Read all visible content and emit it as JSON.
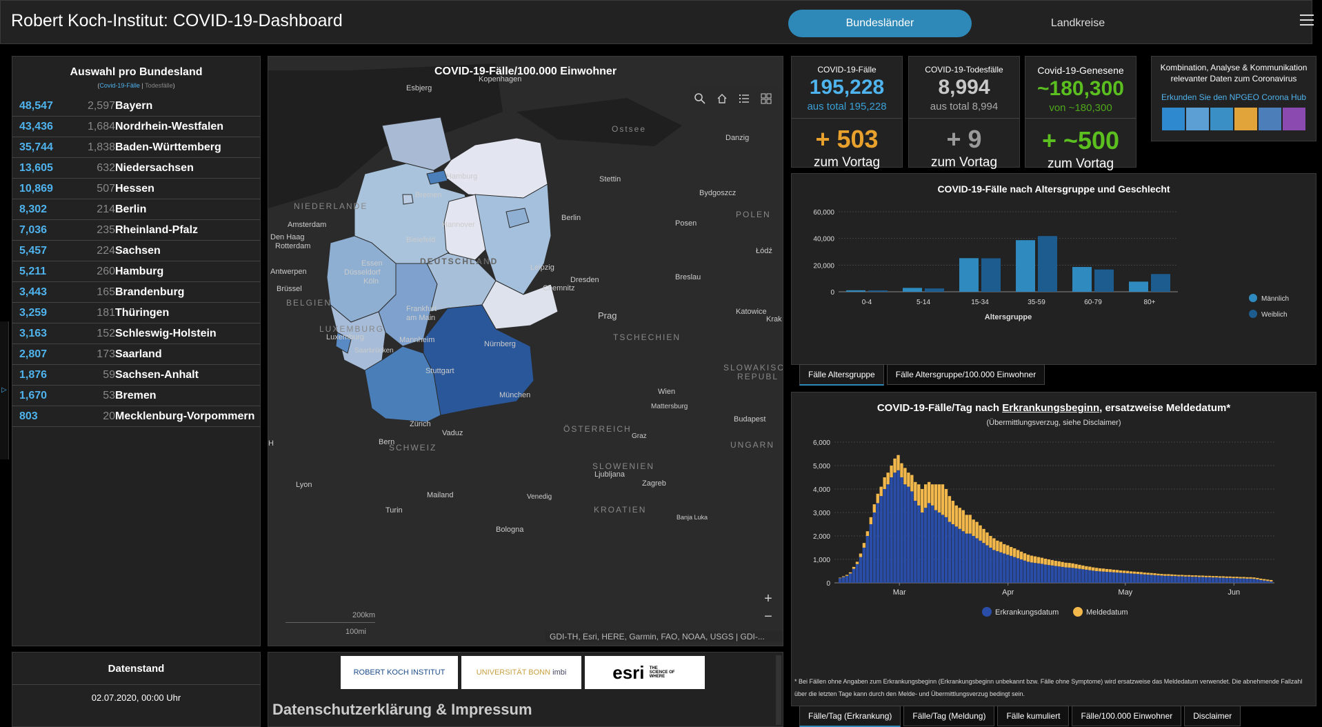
{
  "header": {
    "title": "Robert Koch-Institut: COVID-19-Dashboard",
    "tab_bundeslaender": "Bundesländer",
    "tab_landkreise": "Landkreise"
  },
  "left_panel": {
    "title": "Auswahl pro Bundesland",
    "toggle_cases": "Covid-19-Fälle",
    "toggle_sep": "|",
    "toggle_deaths": "Todesfälle",
    "states": [
      {
        "cases": "48,547",
        "deaths": "2,597",
        "name": "Bayern"
      },
      {
        "cases": "43,436",
        "deaths": "1,684",
        "name": "Nordrhein-Westfalen"
      },
      {
        "cases": "35,744",
        "deaths": "1,838",
        "name": "Baden-Württemberg"
      },
      {
        "cases": "13,605",
        "deaths": "632",
        "name": "Niedersachsen"
      },
      {
        "cases": "10,869",
        "deaths": "507",
        "name": "Hessen"
      },
      {
        "cases": "8,302",
        "deaths": "214",
        "name": "Berlin"
      },
      {
        "cases": "7,036",
        "deaths": "235",
        "name": "Rheinland-Pfalz"
      },
      {
        "cases": "5,457",
        "deaths": "224",
        "name": "Sachsen"
      },
      {
        "cases": "5,211",
        "deaths": "260",
        "name": "Hamburg"
      },
      {
        "cases": "3,443",
        "deaths": "165",
        "name": "Brandenburg"
      },
      {
        "cases": "3,259",
        "deaths": "181",
        "name": "Thüringen"
      },
      {
        "cases": "3,163",
        "deaths": "152",
        "name": "Schleswig-Holstein"
      },
      {
        "cases": "2,807",
        "deaths": "173",
        "name": "Saarland"
      },
      {
        "cases": "1,876",
        "deaths": "59",
        "name": "Sachsen-Anhalt"
      },
      {
        "cases": "1,670",
        "deaths": "53",
        "name": "Bremen"
      },
      {
        "cases": "803",
        "deaths": "20",
        "name": "Mecklenburg-Vorpommern"
      }
    ]
  },
  "map": {
    "title": "COVID-19-Fälle/100.000 Einwohner",
    "attribution": "GDI-TH, Esri, HERE, Garmin, FAO, NOAA, USGS | GDI-...",
    "scale_km": "200km",
    "scale_mi": "100mi",
    "zoom_in": "+",
    "zoom_out": "−",
    "country_label": "DEUTSCHLAND",
    "labels": {
      "kopenhagen": "Kopenhagen",
      "esbjerg": "Esbjerg",
      "ostsee": "Ostsee",
      "danzig": "Danzig",
      "hamburg": "Hamburg",
      "stettin": "Stettin",
      "bremen": "Bremen",
      "bydgoszcz": "Bydgoszcz",
      "niederlande": "NIEDERLANDE",
      "polen": "POLEN",
      "amsterdam": "Amsterdam",
      "hannover": "Hannover",
      "berlin": "Berlin",
      "posen": "Posen",
      "denhaag": "Den Haag",
      "rotterdam": "Rotterdam",
      "bielefeld": "Bielefeld",
      "lodz": "Łódź",
      "essen": "Essen",
      "duesseldorf": "Düsseldorf",
      "leipzig": "Leipzig",
      "antwerpen": "Antwerpen",
      "koeln": "Köln",
      "dresden": "Dresden",
      "bruessel": "Brüssel",
      "chemnitz": "Chemnitz",
      "breslau": "Breslau",
      "belgien": "BELGIEN",
      "katowice": "Katowice",
      "frankfurt": "Frankfurt am Main",
      "prag": "Prag",
      "krak": "Krak",
      "luxemburg_c": "LUXEMBURG",
      "luxemburg": "Luxemburg",
      "tschechien": "TSCHECHIEN",
      "nuernberg": "Nürnberg",
      "mannheim": "Mannheim",
      "saarbruecken": "Saarbrücken",
      "slowakische": "SLOWAKISCHE",
      "republ": "REPUBL",
      "stuttgart": "Stuttgart",
      "wien": "Wien",
      "muenchen": "München",
      "mattersburg": "Mattersburg",
      "zuerich": "Zürich",
      "oesterreich": "ÖSTERREICH",
      "budapest": "Budapest",
      "vaduz": "Vaduz",
      "bern": "Bern",
      "schweiz": "SCHWEIZ",
      "graz": "Graz",
      "ungarn": "UNGARN",
      "slowenien": "SLOWENIEN",
      "ljubljana": "Ljubljana",
      "lyon": "Lyon",
      "zagreb": "Zagreb",
      "mailand": "Mailand",
      "venedig": "Venedig",
      "turin": "Turin",
      "kroatien": "KROATIEN",
      "banjaluka": "Banja Luka",
      "bologna": "Bologna",
      "h": "H"
    }
  },
  "stats": {
    "cases": {
      "label": "COVID-19-Fälle",
      "value": "195,228",
      "total": "aus total 195,228",
      "delta": "+ 503",
      "delta_label": "zum Vortag"
    },
    "deaths": {
      "label": "COVID-19-Todesfälle",
      "value": "8,994",
      "total": "aus total 8,994",
      "delta": "+ 9",
      "delta_label": "zum Vortag"
    },
    "recovered": {
      "label": "Covid-19-Genesene",
      "value": "~180,300",
      "total": "von ~180,300",
      "delta": "+ ~500",
      "delta_label": "zum Vortag"
    },
    "hub": {
      "line1": "Kombination, Analyse & Kommunikation",
      "line2": "relevanter Daten zum Coronavirus",
      "link": "Erkunden Sie den NPGEO Corona Hub"
    }
  },
  "colors": {
    "accent": "#2f89b8",
    "cases_blue": "#4fb3ee",
    "deaths_gray": "#9a9a9a",
    "recovered_green": "#5bbf1f",
    "delta_orange": "#e8a12c",
    "male": "#2f8bbf",
    "female": "#1d5c8f",
    "erkrankung": "#2a4ea8",
    "melde": "#f2b84b"
  },
  "age_tabs": [
    "Fälle Altersgruppe",
    "Fälle Altersgruppe/100.000 Einwohner"
  ],
  "epi_tabs": [
    "Fälle/Tag (Erkrankung)",
    "Fälle/Tag (Meldung)",
    "Fälle kumuliert",
    "Fälle/100.000 Einwohner",
    "Disclaimer"
  ],
  "epi_text": {
    "title_pre": "COVID-19-Fälle/Tag nach",
    "title_u": "Erkrankungsbeginn",
    "title_post": ", ersatzweise Meldedatum*",
    "subtitle": "(Übermittlungsverzug, siehe Disclaimer)",
    "disclaimer": "* Bei Fällen ohne Angaben zum Erkrankungsbeginn (Erkrankungsbeginn unbekannt bzw. Fälle ohne Symptome) wird ersatzweise das Meldedatum verwendet. Die abnehmende Fallzahl über die letzten Tage kann durch den Melde- und Übermittlungsverzug bedingt sein."
  },
  "chart_data": [
    {
      "type": "bar",
      "title": "COVID-19-Fälle nach Altersgruppe und Geschlecht",
      "xlabel": "Altersgruppe",
      "categories": [
        "0-4",
        "5-14",
        "15-34",
        "35-59",
        "60-79",
        "80+"
      ],
      "series": [
        {
          "name": "Männlich",
          "values": [
            1100,
            2900,
            25200,
            38700,
            18600,
            7600
          ]
        },
        {
          "name": "Weiblich",
          "values": [
            1000,
            2500,
            25100,
            41800,
            16700,
            13300
          ]
        }
      ],
      "ylim": [
        0,
        60000
      ],
      "yticks": [
        "0",
        "20,000",
        "40,000",
        "60,000"
      ],
      "legend": "right"
    },
    {
      "type": "bar",
      "title": "COVID-19-Fälle/Tag nach Erkrankungsbeginn, ersatzweise Meldedatum*",
      "stacked": true,
      "x_tick_labels": [
        "Mar",
        "Apr",
        "May",
        "Jun"
      ],
      "yticks": [
        "0",
        "1,000",
        "2,000",
        "3,000",
        "4,000",
        "5,000",
        "6,000"
      ],
      "ylim": [
        0,
        6000
      ],
      "legend": "bottom",
      "series": [
        {
          "name": "Erkrankungsdatum",
          "values": [
            200,
            250,
            300,
            400,
            600,
            800,
            1100,
            1500,
            2000,
            2500,
            3000,
            3400,
            3700,
            4000,
            4200,
            4500,
            4700,
            4800,
            4500,
            4200,
            4100,
            3900,
            3500,
            3300,
            3000,
            3200,
            3400,
            3300,
            3100,
            3000,
            2900,
            2800,
            2600,
            2500,
            2400,
            2300,
            2200,
            2100,
            2100,
            2000,
            1900,
            1800,
            1700,
            1600,
            1500,
            1400,
            1350,
            1300,
            1250,
            1200,
            1150,
            1100,
            1050,
            1000,
            950,
            900,
            870,
            850,
            830,
            810,
            780,
            760,
            740,
            720,
            700,
            680,
            660,
            650,
            640,
            620,
            600,
            580,
            560,
            540,
            520,
            500,
            490,
            480,
            470,
            460,
            450,
            440,
            430,
            420,
            410,
            400,
            390,
            380,
            370,
            360,
            350,
            340,
            330,
            320,
            310,
            300,
            300,
            290,
            290,
            280,
            280,
            270,
            270,
            260,
            260,
            250,
            250,
            240,
            240,
            230,
            230,
            220,
            220,
            210,
            210,
            200,
            200,
            190,
            190,
            180,
            180,
            170,
            150,
            120,
            100,
            80,
            60
          ]
        },
        {
          "name": "Meldedatum",
          "values": [
            20,
            30,
            40,
            50,
            80,
            100,
            150,
            200,
            200,
            300,
            350,
            400,
            400,
            500,
            500,
            500,
            600,
            650,
            600,
            700,
            600,
            700,
            800,
            900,
            1000,
            1000,
            900,
            900,
            1100,
            1200,
            1300,
            1200,
            1100,
            1000,
            900,
            900,
            900,
            800,
            800,
            700,
            700,
            650,
            600,
            550,
            500,
            500,
            450,
            450,
            400,
            400,
            380,
            370,
            350,
            330,
            310,
            300,
            290,
            280,
            270,
            260,
            250,
            240,
            230,
            220,
            220,
            210,
            200,
            200,
            190,
            180,
            170,
            160,
            150,
            150,
            140,
            140,
            130,
            130,
            120,
            120,
            110,
            110,
            100,
            100,
            100,
            90,
            90,
            90,
            90,
            80,
            80,
            80,
            80,
            70,
            70,
            70,
            70,
            70,
            60,
            60,
            60,
            60,
            60,
            60,
            60,
            60,
            60,
            60,
            60,
            60,
            60,
            60,
            60,
            60,
            60,
            60,
            60,
            60,
            60,
            60,
            60,
            60,
            60,
            60,
            60,
            60,
            60,
            60
          ]
        }
      ]
    }
  ],
  "datenstand": {
    "title": "Datenstand",
    "value": "02.07.2020, 00:00 Uhr"
  },
  "impressum": {
    "heading": "Datenschutzerklärung & Impressum",
    "logo_rki": "ROBERT KOCH INSTITUT",
    "logo_bonn": "UNIVERSITÄT BONN",
    "logo_imbi": "imbi",
    "logo_esri": "esri",
    "logo_esri_tag": "THE SCIENCE OF WHERE"
  }
}
